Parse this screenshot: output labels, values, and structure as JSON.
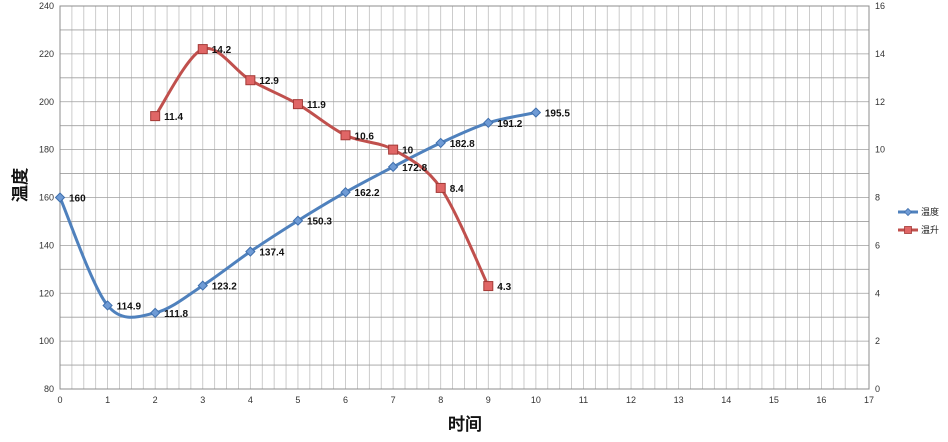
{
  "chart_data": {
    "type": "line",
    "xlabel": "时间",
    "ylabel": "温度",
    "xlim": [
      0,
      17
    ],
    "ylim": [
      80,
      240
    ],
    "y2lim": [
      0,
      16
    ],
    "x_ticks": [
      "0",
      "1",
      "2",
      "3",
      "4",
      "5",
      "6",
      "7",
      "8",
      "9",
      "10",
      "11",
      "12",
      "13",
      "14",
      "15",
      "16",
      "17"
    ],
    "y_ticks": [
      "80",
      "100",
      "120",
      "140",
      "160",
      "180",
      "200",
      "220",
      "240"
    ],
    "y2_ticks": [
      "0",
      "2",
      "4",
      "6",
      "8",
      "10",
      "12",
      "14",
      "16"
    ],
    "grid": true,
    "legend_position": "right",
    "series": [
      {
        "name": "温度",
        "axis": "left",
        "color": "#4f81bd",
        "marker": "diamond",
        "smooth": true,
        "x": [
          0,
          1,
          2,
          3,
          4,
          5,
          6,
          7,
          8,
          9,
          10
        ],
        "values": [
          160,
          114.9,
          111.8,
          123.2,
          137.4,
          150.3,
          162.2,
          172.8,
          182.8,
          191.2,
          195.5
        ],
        "labels": [
          "160",
          "114.9",
          "111.8",
          "123.2",
          "137.4",
          "150.3",
          "162.2",
          "172.8",
          "182.8",
          "191.2",
          "195.5"
        ]
      },
      {
        "name": "温升",
        "axis": "right",
        "color": "#c0504d",
        "marker": "square",
        "smooth": true,
        "x": [
          2,
          3,
          4,
          5,
          6,
          7,
          8,
          9
        ],
        "values": [
          11.4,
          14.2,
          12.9,
          11.9,
          10.6,
          10,
          8.4,
          4.3
        ],
        "labels": [
          "11.4",
          "14.2",
          "12.9",
          "11.9",
          "10.6",
          "10",
          "8.4",
          "4.3"
        ]
      }
    ]
  }
}
